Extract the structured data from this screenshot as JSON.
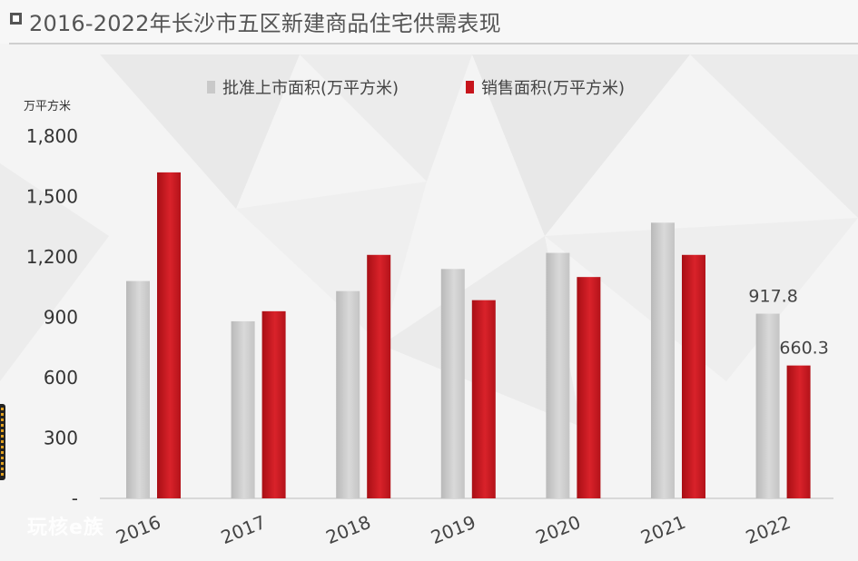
{
  "title": "2016-2022年长沙市五区新建商品住宅供需表现",
  "watermark": "玩核e族",
  "colors": {
    "supply": "#c9c9c9",
    "sales": "#c7151c",
    "text": "#333333"
  },
  "chart_data": {
    "type": "bar",
    "title": "2016-2022年长沙市五区新建商品住宅供需表现",
    "ylabel": "万平方米",
    "xlabel": "",
    "ylim": [
      0,
      1800
    ],
    "yticks": [
      0,
      300,
      600,
      900,
      1200,
      1500,
      1800
    ],
    "ytick_labels": [
      "-",
      "300",
      "600",
      "900",
      "1,200",
      "1,500",
      "1,800"
    ],
    "categories": [
      "2016",
      "2017",
      "2018",
      "2019",
      "2020",
      "2021",
      "2022"
    ],
    "series": [
      {
        "name": "批准上市面积(万平方米)",
        "values": [
          1080,
          880,
          1030,
          1140,
          1220,
          1370,
          917.8
        ]
      },
      {
        "name": "销售面积(万平方米)",
        "values": [
          1620,
          930,
          1210,
          985,
          1100,
          1210,
          660.3
        ]
      }
    ],
    "annotations": [
      {
        "series": 0,
        "category": "2022",
        "label": "917.8"
      },
      {
        "series": 1,
        "category": "2022",
        "label": "660.3"
      }
    ],
    "legend": "top-center",
    "grid": false
  }
}
